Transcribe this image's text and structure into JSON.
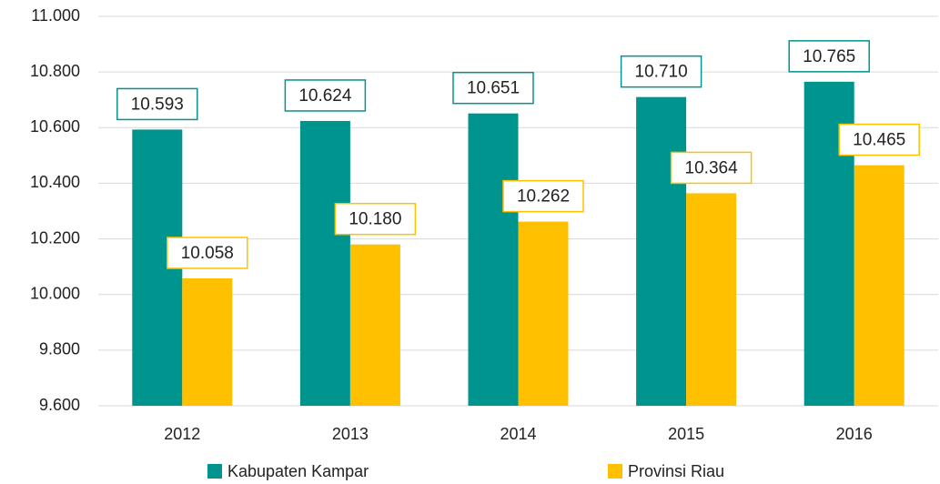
{
  "chart_data": {
    "type": "bar",
    "categories": [
      "2012",
      "2013",
      "2014",
      "2015",
      "2016"
    ],
    "series": [
      {
        "name": "Kabupaten Kampar",
        "color": "#00948f",
        "values": [
          10593,
          10624,
          10651,
          10710,
          10765
        ],
        "value_labels": [
          "10.593",
          "10.624",
          "10.651",
          "10.710",
          "10.765"
        ]
      },
      {
        "name": "Provinsi Riau",
        "color": "#ffc000",
        "values": [
          10058,
          10180,
          10262,
          10364,
          10465
        ],
        "value_labels": [
          "10.058",
          "10.180",
          "10.262",
          "10.364",
          "10.465"
        ]
      }
    ],
    "ylim": [
      9600,
      11000
    ],
    "yticks": [
      {
        "value": 9600,
        "label": "9.600"
      },
      {
        "value": 9800,
        "label": "9.800"
      },
      {
        "value": 10000,
        "label": "10.000"
      },
      {
        "value": 10200,
        "label": "10.200"
      },
      {
        "value": 10400,
        "label": "10.400"
      },
      {
        "value": 10600,
        "label": "10.600"
      },
      {
        "value": 10800,
        "label": "10.800"
      },
      {
        "value": 11000,
        "label": "11.000"
      }
    ],
    "grid": true
  }
}
